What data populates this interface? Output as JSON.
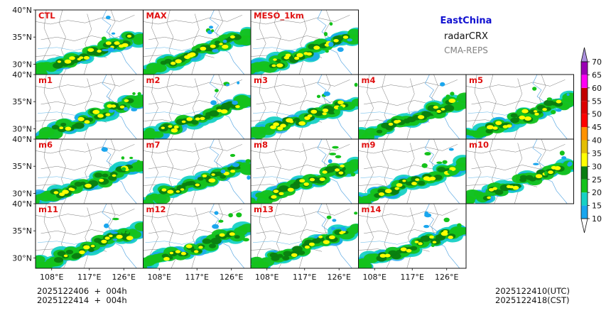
{
  "header": {
    "region": "EastChina",
    "product": "radarCRX",
    "system": "CMA-REPS",
    "region_color": "#1010d0"
  },
  "panels": [
    [
      "CTL",
      "MAX",
      "MESO_1km"
    ],
    [
      "m1",
      "m2",
      "m3",
      "m4",
      "m5"
    ],
    [
      "m6",
      "m7",
      "m8",
      "m9",
      "m10"
    ],
    [
      "m11",
      "m12",
      "m13",
      "m14"
    ]
  ],
  "lat_ticks": [
    "40°N",
    "35°N",
    "30°N"
  ],
  "lon_ticks": [
    "108°E",
    "117°E",
    "126°E"
  ],
  "colorbar": {
    "levels": [
      "10",
      "15",
      "20",
      "25",
      "30",
      "35",
      "40",
      "45",
      "50",
      "55",
      "60",
      "65",
      "70"
    ],
    "colors": [
      "#1aa6ee",
      "#17d1c5",
      "#14c21b",
      "#0a7d10",
      "#ffff00",
      "#e4be02",
      "#ff9200",
      "#ff0000",
      "#dd0000",
      "#c20000",
      "#ff00f4",
      "#9a00b4",
      "#ab90de"
    ]
  },
  "footer": {
    "init_line1": "2025122406  +  004h",
    "init_line2": "2025122414  +  004h",
    "valid_line1": "2025122410(UTC)",
    "valid_line2": "2025122418(CST)"
  }
}
